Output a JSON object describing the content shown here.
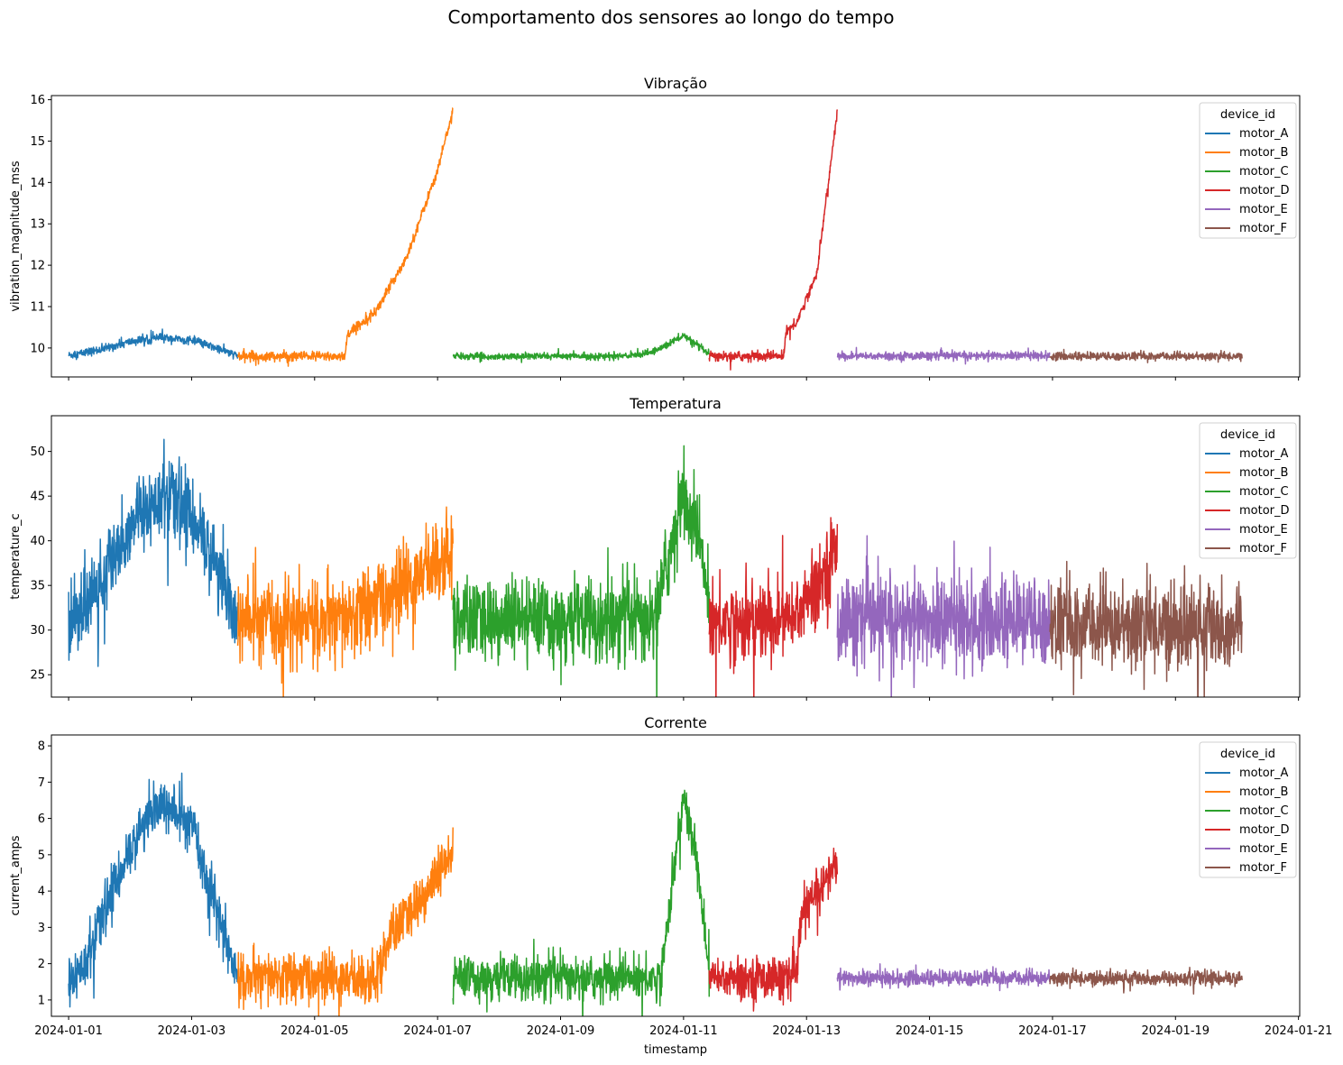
{
  "figure": {
    "suptitle": "Comportamento dos sensores ao longo do tempo",
    "shared_xlabel": "timestamp"
  },
  "chart_data": {
    "type": "line",
    "x_axis": {
      "kind": "date",
      "range": [
        "2024-01-01",
        "2024-01-21"
      ],
      "ticks": [
        "2024-01-01",
        "2024-01-03",
        "2024-01-05",
        "2024-01-07",
        "2024-01-09",
        "2024-01-11",
        "2024-01-13",
        "2024-01-15",
        "2024-01-17",
        "2024-01-19",
        "2024-01-21"
      ]
    },
    "legend": {
      "title": "device_id",
      "placement": "top-right"
    },
    "devices": [
      {
        "name": "motor_A",
        "color": "#1f77b4",
        "start": "2024-01-01T00:00",
        "end": "2024-01-03T18:00"
      },
      {
        "name": "motor_B",
        "color": "#ff7f0e",
        "start": "2024-01-03T18:00",
        "end": "2024-01-07T06:00"
      },
      {
        "name": "motor_C",
        "color": "#2ca02c",
        "start": "2024-01-07T06:00",
        "end": "2024-01-11T10:00"
      },
      {
        "name": "motor_D",
        "color": "#d62728",
        "start": "2024-01-11T10:00",
        "end": "2024-01-13T12:00"
      },
      {
        "name": "motor_E",
        "color": "#9467bd",
        "start": "2024-01-13T12:00",
        "end": "2024-01-16T23:00"
      },
      {
        "name": "motor_F",
        "color": "#8c564b",
        "start": "2024-01-16T23:00",
        "end": "2024-01-20T02:00"
      }
    ],
    "panels": [
      {
        "title": "Vibração",
        "ylabel": "vibration_magnitude_mss",
        "ylim": [
          9.3,
          16.1
        ],
        "yticks": [
          10,
          11,
          12,
          13,
          14,
          15,
          16
        ],
        "series": [
          {
            "name": "motor_A",
            "x": [
              "2024-01-01T00:00",
              "2024-01-01T12:00",
              "2024-01-02T00:00",
              "2024-01-02T12:00",
              "2024-01-03T00:00",
              "2024-01-03T12:00",
              "2024-01-03T18:00"
            ],
            "y": [
              9.82,
              9.95,
              10.15,
              10.25,
              10.18,
              9.95,
              9.8
            ],
            "noise": 0.05
          },
          {
            "name": "motor_B",
            "x": [
              "2024-01-03T18:00",
              "2024-01-05T12:00",
              "2024-01-05T12:30",
              "2024-01-06T00:00",
              "2024-01-06T12:00",
              "2024-01-07T00:00",
              "2024-01-07T06:00"
            ],
            "y": [
              9.8,
              9.8,
              10.3,
              10.9,
              12.2,
              14.3,
              15.75
            ],
            "noise": 0.06
          },
          {
            "name": "motor_C",
            "x": [
              "2024-01-07T06:00",
              "2024-01-10T00:00",
              "2024-01-10T12:00",
              "2024-01-11T00:00",
              "2024-01-11T10:00"
            ],
            "y": [
              9.8,
              9.8,
              9.9,
              10.3,
              9.85
            ],
            "noise": 0.04
          },
          {
            "name": "motor_D",
            "x": [
              "2024-01-11T10:00",
              "2024-01-12T15:00",
              "2024-01-12T16:00",
              "2024-01-12T20:00",
              "2024-01-13T04:00",
              "2024-01-13T12:00"
            ],
            "y": [
              9.8,
              9.8,
              10.4,
              10.6,
              11.8,
              15.7
            ],
            "noise": 0.06
          },
          {
            "name": "motor_E",
            "x": [
              "2024-01-13T12:00",
              "2024-01-16T23:00"
            ],
            "y": [
              9.8,
              9.82
            ],
            "noise": 0.05
          },
          {
            "name": "motor_F",
            "x": [
              "2024-01-16T23:00",
              "2024-01-20T02:00"
            ],
            "y": [
              9.8,
              9.8
            ],
            "noise": 0.05
          }
        ]
      },
      {
        "title": "Temperatura",
        "ylabel": "temperature_c",
        "ylim": [
          22.5,
          54
        ],
        "yticks": [
          25,
          30,
          35,
          40,
          45,
          50
        ],
        "series": [
          {
            "name": "motor_A",
            "x": [
              "2024-01-01T00:00",
              "2024-01-01T12:00",
              "2024-01-02T00:00",
              "2024-01-02T12:00",
              "2024-01-03T00:00",
              "2024-01-03T12:00",
              "2024-01-03T18:00"
            ],
            "y": [
              31,
              35,
              42,
              45,
              43,
              36,
              30
            ],
            "noise": 2.2
          },
          {
            "name": "motor_B",
            "x": [
              "2024-01-03T18:00",
              "2024-01-05T12:00",
              "2024-01-06T00:00",
              "2024-01-06T12:00",
              "2024-01-07T00:00",
              "2024-01-07T06:00"
            ],
            "y": [
              31,
              31,
              33,
              35,
              38,
              38.5
            ],
            "noise": 2.3
          },
          {
            "name": "motor_C",
            "x": [
              "2024-01-07T06:00",
              "2024-01-10T12:00",
              "2024-01-10T18:00",
              "2024-01-11T00:00",
              "2024-01-11T06:00",
              "2024-01-11T10:00"
            ],
            "y": [
              31,
              31,
              38,
              45,
              40,
              33
            ],
            "noise": 2.3
          },
          {
            "name": "motor_D",
            "x": [
              "2024-01-11T10:00",
              "2024-01-12T18:00",
              "2024-01-13T04:00",
              "2024-01-13T12:00"
            ],
            "y": [
              31,
              31,
              35,
              39
            ],
            "noise": 2.3
          },
          {
            "name": "motor_E",
            "x": [
              "2024-01-13T12:00",
              "2024-01-16T23:00"
            ],
            "y": [
              31,
              31
            ],
            "noise": 2.5
          },
          {
            "name": "motor_F",
            "x": [
              "2024-01-16T23:00",
              "2024-01-20T02:00"
            ],
            "y": [
              30.5,
              30.5
            ],
            "noise": 2.5
          }
        ]
      },
      {
        "title": "Corrente",
        "ylabel": "current_amps",
        "ylim": [
          0.55,
          8.3
        ],
        "yticks": [
          1,
          2,
          3,
          4,
          5,
          6,
          7,
          8
        ],
        "series": [
          {
            "name": "motor_A",
            "x": [
              "2024-01-01T00:00",
              "2024-01-01T08:00",
              "2024-01-01T18:00",
              "2024-01-02T06:00",
              "2024-01-02T12:00",
              "2024-01-03T00:00",
              "2024-01-03T12:00",
              "2024-01-03T18:00"
            ],
            "y": [
              1.5,
              2.2,
              4.2,
              6.0,
              6.4,
              5.8,
              3.0,
              1.5
            ],
            "noise": 0.35
          },
          {
            "name": "motor_B",
            "x": [
              "2024-01-03T18:00",
              "2024-01-06T00:00",
              "2024-01-06T06:00",
              "2024-01-06T18:00",
              "2024-01-07T06:00"
            ],
            "y": [
              1.6,
              1.6,
              2.8,
              3.8,
              5.0
            ],
            "noise": 0.35
          },
          {
            "name": "motor_C",
            "x": [
              "2024-01-07T06:00",
              "2024-01-10T15:00",
              "2024-01-10T21:00",
              "2024-01-11T00:00",
              "2024-01-11T06:00",
              "2024-01-11T10:00"
            ],
            "y": [
              1.6,
              1.6,
              5.0,
              6.6,
              4.5,
              1.6
            ],
            "noise": 0.3
          },
          {
            "name": "motor_D",
            "x": [
              "2024-01-11T10:00",
              "2024-01-12T20:00",
              "2024-01-12T22:00",
              "2024-01-13T12:00"
            ],
            "y": [
              1.6,
              1.6,
              3.3,
              4.8
            ],
            "noise": 0.3
          },
          {
            "name": "motor_E",
            "x": [
              "2024-01-13T12:00",
              "2024-01-16T23:00"
            ],
            "y": [
              1.6,
              1.6
            ],
            "noise": 0.11
          },
          {
            "name": "motor_F",
            "x": [
              "2024-01-16T23:00",
              "2024-01-20T02:00"
            ],
            "y": [
              1.6,
              1.6
            ],
            "noise": 0.1
          }
        ]
      }
    ]
  }
}
